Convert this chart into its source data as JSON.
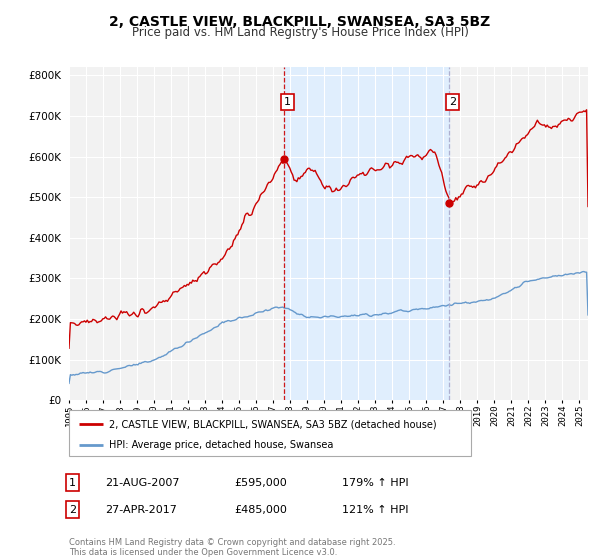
{
  "title": "2, CASTLE VIEW, BLACKPILL, SWANSEA, SA3 5BZ",
  "subtitle": "Price paid vs. HM Land Registry's House Price Index (HPI)",
  "legend_property": "2, CASTLE VIEW, BLACKPILL, SWANSEA, SA3 5BZ (detached house)",
  "legend_hpi": "HPI: Average price, detached house, Swansea",
  "annotation1_date": "21-AUG-2007",
  "annotation1_price": 595000,
  "annotation1_hpi_pct": "179% ↑ HPI",
  "annotation2_date": "27-APR-2017",
  "annotation2_price": 485000,
  "annotation2_hpi_pct": "121% ↑ HPI",
  "footer": "Contains HM Land Registry data © Crown copyright and database right 2025.\nThis data is licensed under the Open Government Licence v3.0.",
  "property_color": "#cc0000",
  "hpi_color": "#6699cc",
  "vline1_color": "#cc0000",
  "vline2_color": "#aaaacc",
  "shade_color": "#ddeeff",
  "bg_color": "#f2f2f2",
  "grid_color": "#ffffff",
  "ylim": [
    0,
    820000
  ],
  "xlim_start": 1995.0,
  "xlim_end": 2025.5,
  "sale1_x": 2007.64,
  "sale1_y": 595000,
  "sale2_x": 2017.32,
  "sale2_y": 485000
}
